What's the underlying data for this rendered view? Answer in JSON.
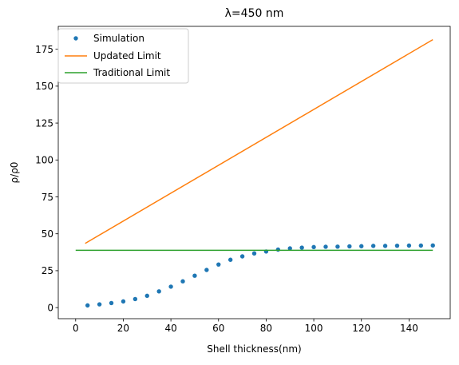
{
  "chart_data": {
    "type": "line",
    "title": "λ=450 nm",
    "xlabel": "Shell thickness(nm)",
    "ylabel": "ρ/ρ0",
    "xlim": [
      -7.3,
      157.3
    ],
    "ylim": [
      -7.5,
      190.5
    ],
    "xticks": [
      0,
      20,
      40,
      60,
      80,
      100,
      120,
      140
    ],
    "yticks": [
      0,
      25,
      50,
      75,
      100,
      125,
      150,
      175
    ],
    "grid": false,
    "legend": "top-left",
    "series": [
      {
        "name": "Simulation",
        "style": "scatter",
        "color": "#1f77b4",
        "x": [
          5,
          10,
          15,
          20,
          25,
          30,
          35,
          40,
          45,
          50,
          55,
          60,
          65,
          70,
          75,
          80,
          85,
          90,
          95,
          100,
          105,
          110,
          115,
          120,
          125,
          130,
          135,
          140,
          145,
          150
        ],
        "y": [
          1.5,
          2.2,
          3.1,
          4.2,
          5.8,
          8.0,
          11.0,
          14.2,
          17.8,
          21.6,
          25.5,
          29.2,
          32.4,
          34.7,
          36.7,
          38.0,
          39.3,
          40.1,
          40.6,
          41.0,
          41.2,
          41.3,
          41.5,
          41.6,
          41.8,
          41.8,
          41.9,
          42.0,
          42.0,
          42.1
        ]
      },
      {
        "name": "Updated Limit",
        "style": "line",
        "color": "#ff7f0e",
        "x": [
          4,
          150
        ],
        "y": [
          43.5,
          181.5
        ]
      },
      {
        "name": "Traditional Limit",
        "style": "line",
        "color": "#2ca02c",
        "x": [
          0,
          150
        ],
        "y": [
          38.8,
          38.8
        ]
      }
    ]
  }
}
